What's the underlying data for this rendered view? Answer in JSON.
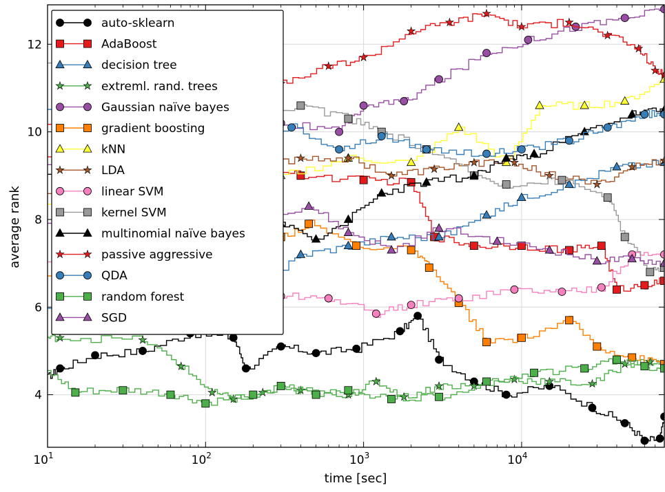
{
  "chart_data": {
    "type": "line",
    "xlabel": "time [sec]",
    "ylabel": "average rank",
    "x_scale": "log",
    "xlim": [
      10,
      80000
    ],
    "ylim": [
      2.8,
      12.9
    ],
    "x_ticks": [
      10,
      100,
      1000,
      10000
    ],
    "x_tick_labels": [
      {
        "base": "10",
        "exp": "1"
      },
      {
        "base": "10",
        "exp": "2"
      },
      {
        "base": "10",
        "exp": "3"
      },
      {
        "base": "10",
        "exp": "4"
      }
    ],
    "y_ticks": [
      4,
      6,
      8,
      10,
      12
    ],
    "grid": true,
    "legend_position": "upper-left",
    "series": [
      {
        "name": "auto-sklearn",
        "color": "#000000",
        "marker": "circle",
        "points": [
          [
            10,
            4.4
          ],
          [
            12,
            4.6
          ],
          [
            20,
            4.9
          ],
          [
            40,
            5.0
          ],
          [
            80,
            5.4
          ],
          [
            150,
            5.3
          ],
          [
            180,
            4.6
          ],
          [
            300,
            5.1
          ],
          [
            500,
            4.95
          ],
          [
            900,
            5.05
          ],
          [
            1700,
            5.45
          ],
          [
            2200,
            5.8
          ],
          [
            3000,
            4.8
          ],
          [
            5000,
            4.3
          ],
          [
            8000,
            4.0
          ],
          [
            15000,
            4.2
          ],
          [
            28000,
            3.7
          ],
          [
            45000,
            3.35
          ],
          [
            60000,
            2.95
          ],
          [
            75000,
            3.0
          ],
          [
            80000,
            3.5
          ]
        ]
      },
      {
        "name": "AdaBoost",
        "color": "#e41a1c",
        "marker": "square",
        "points": [
          [
            10,
            9.5
          ],
          [
            30,
            9.3
          ],
          [
            100,
            9.6
          ],
          [
            200,
            9.2
          ],
          [
            400,
            9.0
          ],
          [
            1000,
            8.9
          ],
          [
            2000,
            8.85
          ],
          [
            2800,
            7.6
          ],
          [
            5000,
            7.4
          ],
          [
            10000,
            7.4
          ],
          [
            20000,
            7.3
          ],
          [
            32000,
            7.4
          ],
          [
            40000,
            6.4
          ],
          [
            60000,
            6.5
          ],
          [
            80000,
            6.6
          ]
        ]
      },
      {
        "name": "decision tree",
        "color": "#377eb8",
        "marker": "triangle",
        "points": [
          [
            10,
            6.0
          ],
          [
            30,
            5.6
          ],
          [
            60,
            5.5
          ],
          [
            120,
            5.8
          ],
          [
            200,
            6.4
          ],
          [
            400,
            7.2
          ],
          [
            800,
            7.4
          ],
          [
            1500,
            7.6
          ],
          [
            3000,
            7.6
          ],
          [
            6000,
            8.1
          ],
          [
            10000,
            8.5
          ],
          [
            20000,
            8.8
          ],
          [
            40000,
            9.2
          ],
          [
            80000,
            9.3
          ]
        ]
      },
      {
        "name": "extreml. rand. trees",
        "color": "#4daf4a",
        "marker": "star",
        "points": [
          [
            10,
            5.3
          ],
          [
            12,
            5.3
          ],
          [
            40,
            5.25
          ],
          [
            70,
            4.65
          ],
          [
            110,
            4.05
          ],
          [
            150,
            3.9
          ],
          [
            230,
            4.05
          ],
          [
            400,
            4.1
          ],
          [
            800,
            4.0
          ],
          [
            1200,
            4.3
          ],
          [
            1800,
            3.95
          ],
          [
            3000,
            4.2
          ],
          [
            5000,
            4.2
          ],
          [
            9000,
            4.35
          ],
          [
            15000,
            4.3
          ],
          [
            28000,
            4.25
          ],
          [
            45000,
            4.7
          ],
          [
            65000,
            4.75
          ],
          [
            80000,
            4.7
          ]
        ]
      },
      {
        "name": "Gaussian naïve bayes",
        "color": "#984ea3",
        "marker": "circle",
        "points": [
          [
            10,
            9.2
          ],
          [
            30,
            9.0
          ],
          [
            100,
            8.5
          ],
          [
            200,
            9.6
          ],
          [
            300,
            10.2
          ],
          [
            700,
            10.0
          ],
          [
            1000,
            10.6
          ],
          [
            1800,
            10.7
          ],
          [
            3000,
            11.2
          ],
          [
            6000,
            11.8
          ],
          [
            11000,
            12.1
          ],
          [
            22000,
            12.4
          ],
          [
            45000,
            12.6
          ],
          [
            80000,
            12.8
          ]
        ]
      },
      {
        "name": "gradient boosting",
        "color": "#ff7f00",
        "marker": "square",
        "points": [
          [
            10,
            6.8
          ],
          [
            30,
            6.9
          ],
          [
            100,
            7.3
          ],
          [
            300,
            7.6
          ],
          [
            450,
            7.9
          ],
          [
            900,
            7.4
          ],
          [
            2000,
            7.3
          ],
          [
            2600,
            6.9
          ],
          [
            4000,
            6.1
          ],
          [
            6000,
            5.2
          ],
          [
            10000,
            5.3
          ],
          [
            20000,
            5.7
          ],
          [
            30000,
            5.1
          ],
          [
            50000,
            4.85
          ],
          [
            80000,
            4.7
          ]
        ]
      },
      {
        "name": "kNN",
        "color": "#ffff33",
        "marker": "triangle",
        "points": [
          [
            10,
            8.4
          ],
          [
            30,
            8.7
          ],
          [
            80,
            9.0
          ],
          [
            150,
            9.2
          ],
          [
            300,
            9.0
          ],
          [
            800,
            9.4
          ],
          [
            2000,
            9.3
          ],
          [
            4000,
            10.1
          ],
          [
            8000,
            9.3
          ],
          [
            13000,
            10.6
          ],
          [
            25000,
            10.6
          ],
          [
            45000,
            10.7
          ],
          [
            80000,
            11.2
          ]
        ]
      },
      {
        "name": "LDA",
        "color": "#a65628",
        "marker": "star",
        "points": [
          [
            10,
            8.6
          ],
          [
            40,
            8.7
          ],
          [
            100,
            9.1
          ],
          [
            200,
            9.2
          ],
          [
            400,
            9.4
          ],
          [
            800,
            9.4
          ],
          [
            1500,
            9.0
          ],
          [
            2800,
            9.15
          ],
          [
            5000,
            9.3
          ],
          [
            9000,
            9.3
          ],
          [
            15000,
            9.0
          ],
          [
            30000,
            8.8
          ],
          [
            50000,
            9.2
          ],
          [
            80000,
            9.35
          ]
        ]
      },
      {
        "name": "linear SVM",
        "color": "#f781bf",
        "marker": "circle",
        "points": [
          [
            10,
            7.0
          ],
          [
            40,
            6.6
          ],
          [
            100,
            6.3
          ],
          [
            300,
            6.25
          ],
          [
            600,
            6.2
          ],
          [
            1200,
            5.85
          ],
          [
            2000,
            6.05
          ],
          [
            4000,
            6.2
          ],
          [
            9000,
            6.4
          ],
          [
            18000,
            6.35
          ],
          [
            32000,
            6.45
          ],
          [
            50000,
            7.2
          ],
          [
            80000,
            7.2
          ]
        ]
      },
      {
        "name": "kernel SVM",
        "color": "#999999",
        "marker": "square",
        "points": [
          [
            10,
            11.5
          ],
          [
            30,
            11.3
          ],
          [
            60,
            11.0
          ],
          [
            100,
            10.6
          ],
          [
            200,
            10.2
          ],
          [
            400,
            10.6
          ],
          [
            800,
            10.3
          ],
          [
            1300,
            10.0
          ],
          [
            2500,
            9.6
          ],
          [
            5000,
            9.0
          ],
          [
            8000,
            8.8
          ],
          [
            18000,
            8.9
          ],
          [
            35000,
            8.5
          ],
          [
            45000,
            7.6
          ],
          [
            65000,
            6.8
          ],
          [
            80000,
            6.9
          ]
        ]
      },
      {
        "name": "multinomial naïve bayes",
        "color": "#000000",
        "marker": "triangle-filled",
        "points": [
          [
            10,
            9.1
          ],
          [
            50,
            8.8
          ],
          [
            120,
            8.2
          ],
          [
            300,
            7.9
          ],
          [
            500,
            7.55
          ],
          [
            800,
            8.0
          ],
          [
            1300,
            8.6
          ],
          [
            2500,
            8.85
          ],
          [
            5000,
            9.0
          ],
          [
            8000,
            9.4
          ],
          [
            12000,
            9.5
          ],
          [
            25000,
            10.0
          ],
          [
            50000,
            10.4
          ],
          [
            80000,
            10.5
          ]
        ]
      },
      {
        "name": "passive aggressive",
        "color": "#e41a1c",
        "marker": "star",
        "points": [
          [
            10,
            10.2
          ],
          [
            50,
            10.5
          ],
          [
            150,
            10.8
          ],
          [
            300,
            11.1
          ],
          [
            600,
            11.5
          ],
          [
            1000,
            11.7
          ],
          [
            2000,
            12.3
          ],
          [
            3500,
            12.5
          ],
          [
            6000,
            12.7
          ],
          [
            10000,
            12.4
          ],
          [
            20000,
            12.5
          ],
          [
            35000,
            12.2
          ],
          [
            55000,
            11.9
          ],
          [
            70000,
            11.4
          ],
          [
            80000,
            11.3
          ]
        ]
      },
      {
        "name": "QDA",
        "color": "#377eb8",
        "marker": "circle",
        "points": [
          [
            10,
            10.5
          ],
          [
            30,
            10.4
          ],
          [
            100,
            10.1
          ],
          [
            250,
            10.0
          ],
          [
            350,
            10.1
          ],
          [
            700,
            9.6
          ],
          [
            1300,
            9.9
          ],
          [
            2500,
            9.6
          ],
          [
            6000,
            9.5
          ],
          [
            10000,
            9.6
          ],
          [
            20000,
            9.8
          ],
          [
            35000,
            10.1
          ],
          [
            60000,
            10.4
          ],
          [
            80000,
            10.4
          ]
        ]
      },
      {
        "name": "random forest",
        "color": "#4daf4a",
        "marker": "square",
        "points": [
          [
            10,
            4.5
          ],
          [
            15,
            4.05
          ],
          [
            30,
            4.1
          ],
          [
            60,
            4.0
          ],
          [
            100,
            3.8
          ],
          [
            200,
            4.0
          ],
          [
            300,
            4.2
          ],
          [
            500,
            4.0
          ],
          [
            800,
            4.1
          ],
          [
            1500,
            3.9
          ],
          [
            3000,
            3.95
          ],
          [
            6000,
            4.3
          ],
          [
            12000,
            4.5
          ],
          [
            25000,
            4.6
          ],
          [
            40000,
            4.8
          ],
          [
            60000,
            4.65
          ],
          [
            80000,
            4.6
          ]
        ]
      },
      {
        "name": "SGD",
        "color": "#984ea3",
        "marker": "triangle",
        "points": [
          [
            10,
            8.0
          ],
          [
            40,
            7.7
          ],
          [
            100,
            8.0
          ],
          [
            200,
            8.1
          ],
          [
            450,
            8.3
          ],
          [
            800,
            7.7
          ],
          [
            1500,
            7.3
          ],
          [
            3000,
            7.8
          ],
          [
            7000,
            7.5
          ],
          [
            15000,
            7.3
          ],
          [
            30000,
            7.05
          ],
          [
            50000,
            7.1
          ],
          [
            80000,
            7.0
          ]
        ]
      }
    ]
  }
}
